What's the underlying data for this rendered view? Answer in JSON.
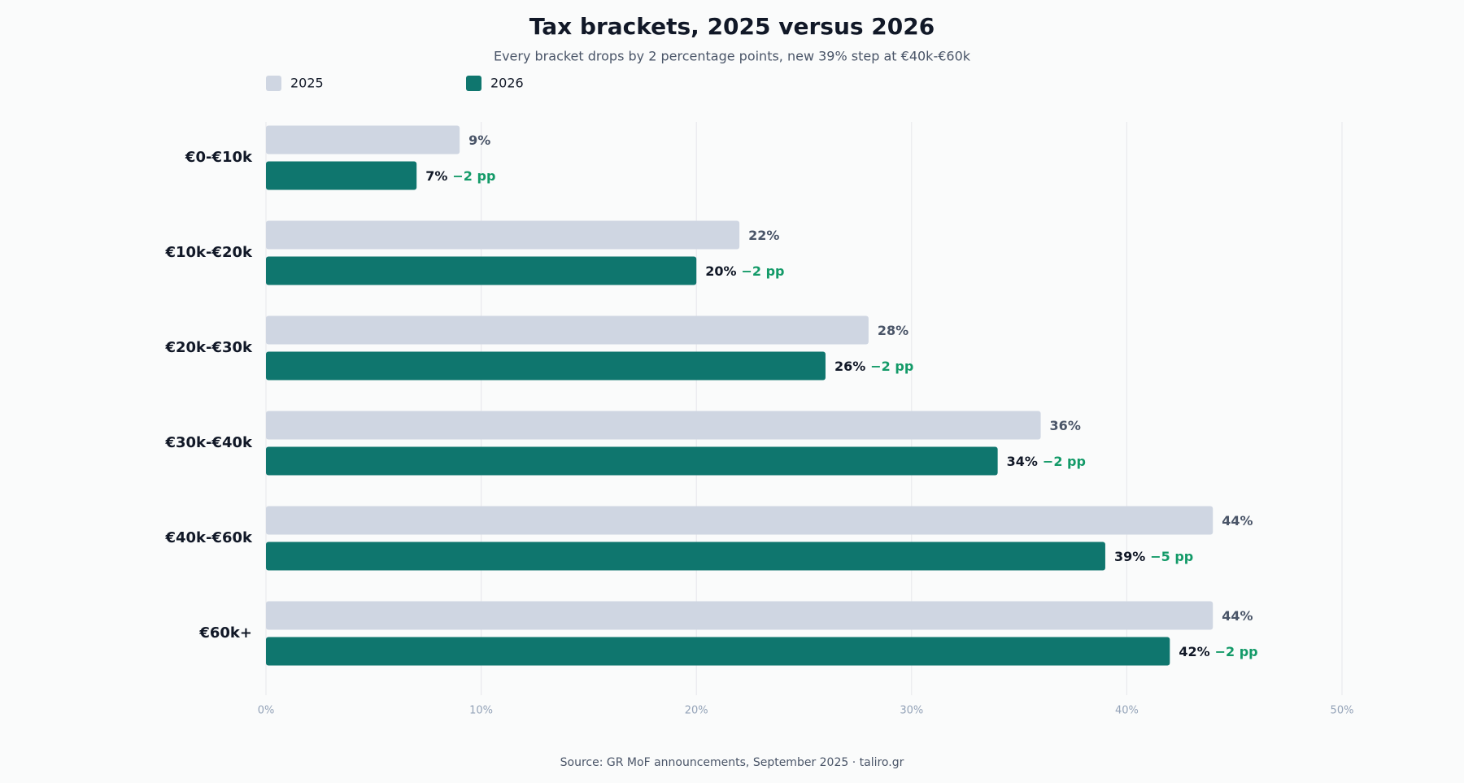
{
  "chart_data": {
    "type": "hbar",
    "title": "Tax brackets, 2025 versus 2026",
    "subtitle": "Every bracket drops by 2 percentage points, new 39% step at €40k-€60k",
    "source": "Source: GR MoF announcements, September 2025 · taliro.gr",
    "categories": [
      "€0-€10k",
      "€10k-€20k",
      "€20k-€30k",
      "€30k-€40k",
      "€40k-€60k",
      "€60k+"
    ],
    "series": [
      {
        "name": "2025",
        "color": "#cfd6e2",
        "label_color": "#4a5568",
        "values": [
          9,
          22,
          28,
          36,
          44,
          44
        ],
        "value_labels": [
          "9%",
          "22%",
          "28%",
          "36%",
          "44%",
          "44%"
        ]
      },
      {
        "name": "2026",
        "color": "#0f766e",
        "label_color": "#111827",
        "values": [
          7,
          20,
          26,
          34,
          39,
          42
        ],
        "value_labels": [
          "7%",
          "20%",
          "26%",
          "34%",
          "39%",
          "42%"
        ],
        "change_labels": [
          "−2 pp",
          "−2 pp",
          "−2 pp",
          "−2 pp",
          "−5 pp",
          "−2 pp"
        ],
        "change_color": "#139a68"
      }
    ],
    "xlim": [
      0,
      50
    ],
    "xticks": [
      {
        "value": 0,
        "label": "0%"
      },
      {
        "value": 10,
        "label": "10%"
      },
      {
        "value": 20,
        "label": "20%"
      },
      {
        "value": 30,
        "label": "30%"
      },
      {
        "value": 40,
        "label": "40%"
      },
      {
        "value": 50,
        "label": "50%"
      }
    ],
    "grid": true
  }
}
